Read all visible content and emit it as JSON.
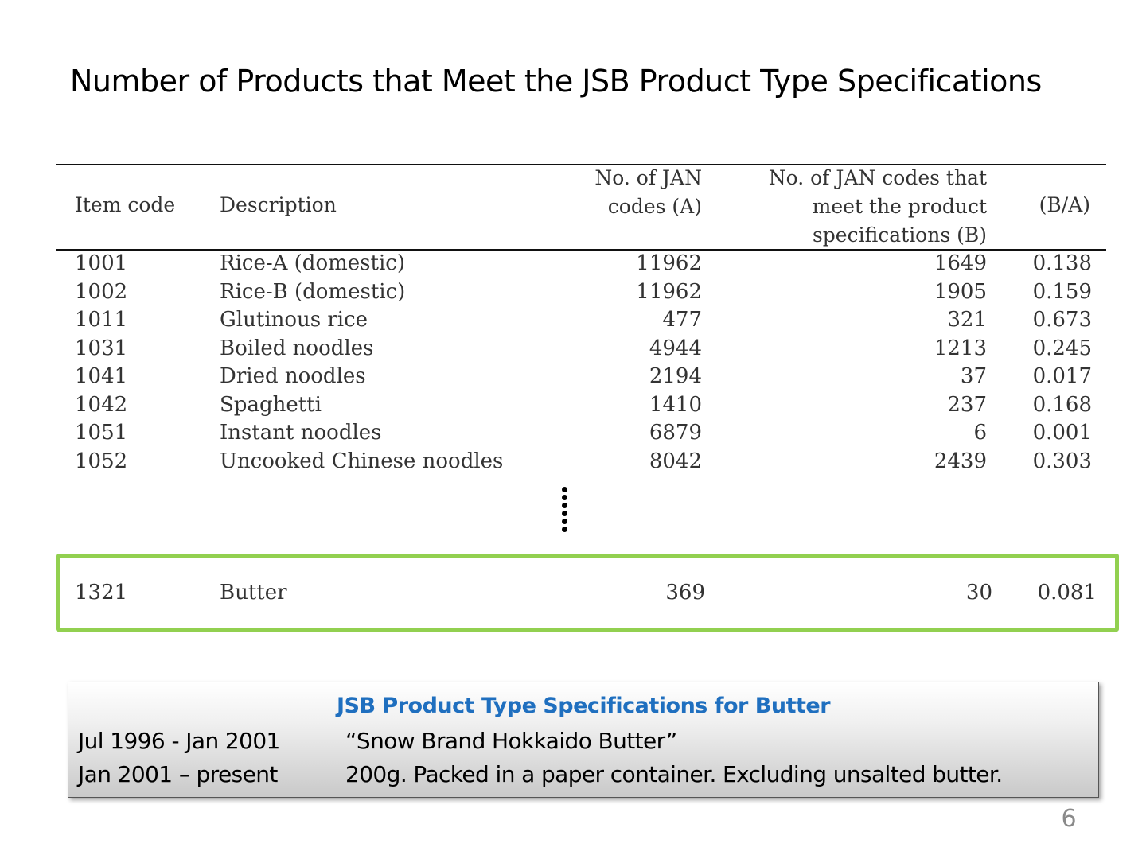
{
  "slide": {
    "title": "Number of Products that Meet the JSB Product Type Specifications",
    "page_number": "6"
  },
  "table": {
    "headers": {
      "item_code": "Item code",
      "description": "Description",
      "count_a": [
        "No. of JAN",
        "codes (A)"
      ],
      "count_b": [
        "No. of JAN codes that",
        "meet the product",
        "specifications (B)"
      ],
      "ratio": "(B/A)"
    },
    "rows": [
      {
        "code": "1001",
        "description": "Rice-A (domestic)",
        "a": "11962",
        "b": "1649",
        "ratio": "0.138"
      },
      {
        "code": "1002",
        "description": "Rice-B (domestic)",
        "a": "11962",
        "b": "1905",
        "ratio": "0.159"
      },
      {
        "code": "1011",
        "description": "Glutinous rice",
        "a": "477",
        "b": "321",
        "ratio": "0.673"
      },
      {
        "code": "1031",
        "description": "Boiled noodles",
        "a": "4944",
        "b": "1213",
        "ratio": "0.245"
      },
      {
        "code": "1041",
        "description": "Dried noodles",
        "a": "2194",
        "b": "37",
        "ratio": "0.017"
      },
      {
        "code": "1042",
        "description": "Spaghetti",
        "a": "1410",
        "b": "237",
        "ratio": "0.168"
      },
      {
        "code": "1051",
        "description": "Instant noodles",
        "a": "6879",
        "b": "6",
        "ratio": "0.001"
      },
      {
        "code": "1052",
        "description": "Uncooked Chinese noodles",
        "a": "8042",
        "b": "2439",
        "ratio": "0.303"
      }
    ],
    "highlighted_row": {
      "code": "1321",
      "description": "Butter",
      "a": "369",
      "b": "30",
      "ratio": "0.081"
    },
    "highlight_color": "#92d050"
  },
  "spec_box": {
    "title": "JSB Product Type Specifications for Butter",
    "title_color": "#1f6fbf",
    "entries": [
      {
        "period": "Jul 1996 - Jan 2001",
        "description": "“Snow Brand Hokkaido Butter”"
      },
      {
        "period": "Jan 2001 – present",
        "description": "200g. Packed in a paper container. Excluding unsalted butter."
      }
    ]
  }
}
